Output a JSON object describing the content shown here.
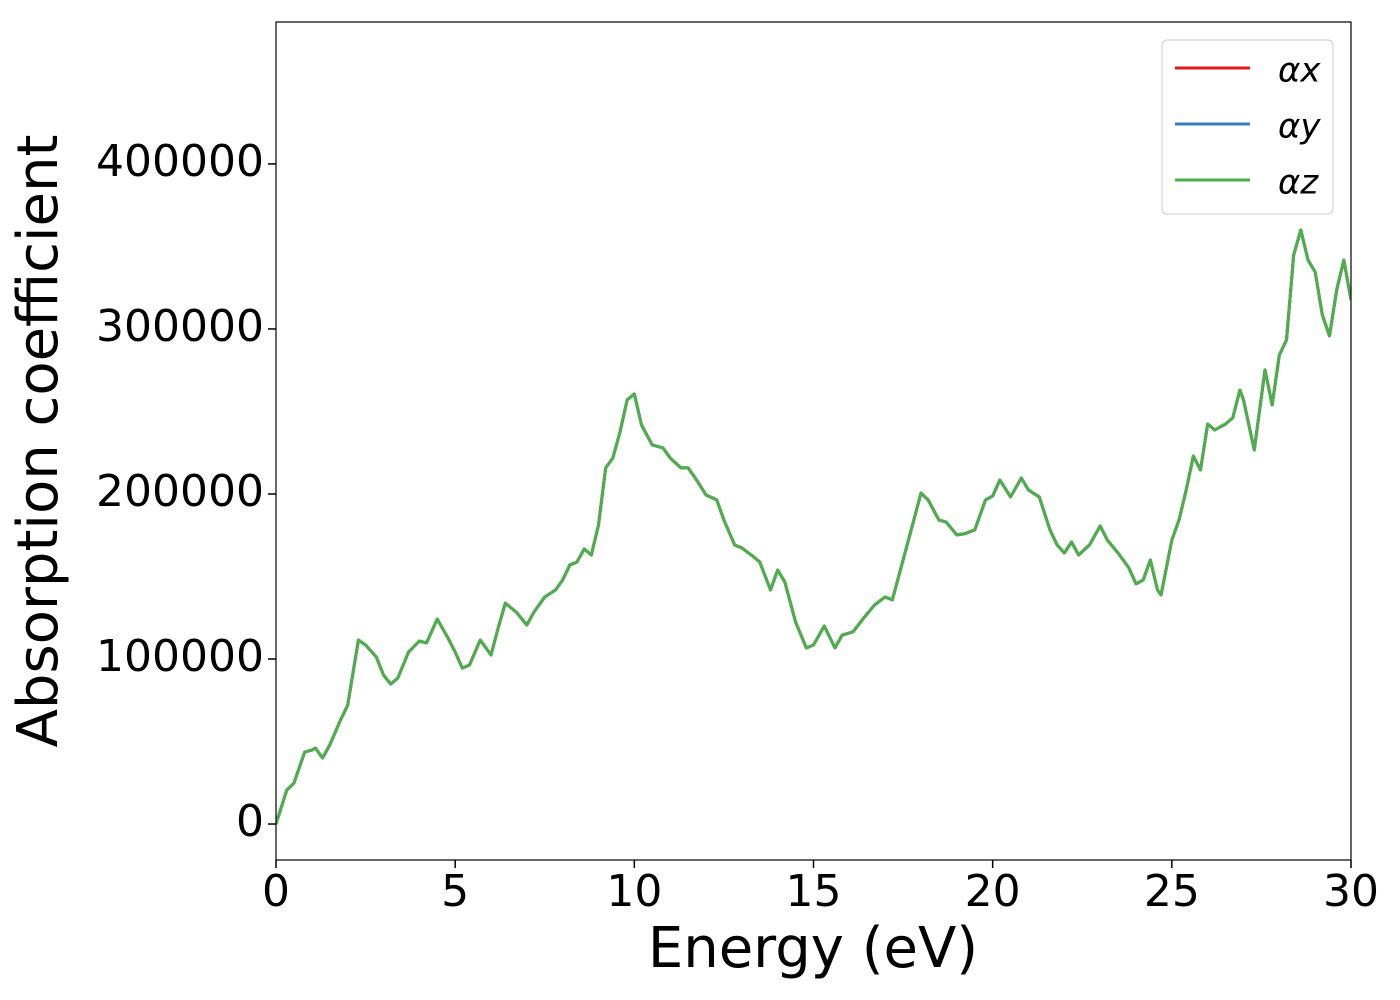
{
  "chart_data": {
    "type": "line",
    "x_label": "Energy (eV)",
    "y_label": "Absorption coefficient",
    "x": [
      0,
      0.3,
      0.5,
      0.8,
      1.0,
      1.1,
      1.3,
      1.5,
      1.8,
      2.0,
      2.3,
      2.5,
      2.8,
      3.0,
      3.2,
      3.4,
      3.7,
      4.0,
      4.2,
      4.5,
      4.8,
      5.0,
      5.2,
      5.4,
      5.7,
      6.0,
      6.2,
      6.4,
      6.7,
      7.0,
      7.2,
      7.5,
      7.8,
      8.0,
      8.2,
      8.4,
      8.6,
      8.8,
      9.0,
      9.2,
      9.4,
      9.6,
      9.8,
      10.0,
      10.2,
      10.5,
      10.8,
      11.0,
      11.3,
      11.5,
      11.7,
      12.0,
      12.3,
      12.5,
      12.8,
      13.0,
      13.3,
      13.5,
      13.8,
      14.0,
      14.2,
      14.5,
      14.8,
      15.0,
      15.3,
      15.6,
      15.8,
      16.1,
      16.4,
      16.7,
      17.0,
      17.2,
      17.5,
      17.8,
      18.0,
      18.2,
      18.5,
      18.7,
      19.0,
      19.2,
      19.5,
      19.8,
      20.0,
      20.2,
      20.5,
      20.8,
      21.0,
      21.3,
      21.6,
      21.8,
      22.0,
      22.2,
      22.4,
      22.7,
      23.0,
      23.2,
      23.5,
      23.8,
      24.0,
      24.2,
      24.4,
      24.6,
      24.7,
      25.0,
      25.2,
      25.4,
      25.6,
      25.8,
      26.0,
      26.2,
      26.5,
      26.7,
      26.9,
      27.0,
      27.3,
      27.6,
      27.8,
      28.0,
      28.2,
      28.4,
      28.6,
      28.8,
      29.0,
      29.2,
      29.4,
      29.6,
      29.8,
      30.0
    ],
    "series": [
      {
        "name": "αx",
        "color": "#e41a1c",
        "values": [
          0,
          20600,
          24800,
          43600,
          44800,
          46000,
          40000,
          47900,
          63000,
          72000,
          111500,
          108500,
          101200,
          90300,
          84800,
          88500,
          104200,
          110900,
          109700,
          124200,
          112700,
          104200,
          94500,
          96400,
          111500,
          102400,
          118800,
          133900,
          128500,
          120600,
          128500,
          137600,
          141800,
          147900,
          157000,
          158800,
          166700,
          163000,
          181200,
          215800,
          221800,
          237600,
          257000,
          260600,
          241800,
          229700,
          227900,
          221800,
          215800,
          215800,
          209700,
          199400,
          196400,
          184200,
          169100,
          167300,
          162400,
          158800,
          141800,
          153900,
          146700,
          122400,
          106700,
          108500,
          120000,
          106700,
          114500,
          116400,
          124800,
          132700,
          137600,
          135800,
          160000,
          184200,
          200600,
          196400,
          184200,
          183000,
          175200,
          175800,
          178200,
          196400,
          198800,
          208500,
          198200,
          209700,
          202400,
          198200,
          178200,
          169100,
          164200,
          170900,
          163000,
          169100,
          180600,
          172100,
          164200,
          155200,
          145500,
          147900,
          160000,
          141800,
          138800,
          172100,
          184200,
          202400,
          223000,
          214500,
          242400,
          238800,
          242400,
          246100,
          263000,
          257000,
          226700,
          275200,
          253900,
          284200,
          293300,
          344800,
          360000,
          341800,
          334500,
          308500,
          295800,
          323600,
          341800,
          317600
        ]
      },
      {
        "name": "αy",
        "color": "#377eb8",
        "values": [
          0,
          20600,
          24800,
          43600,
          44800,
          46000,
          40000,
          47900,
          63000,
          72000,
          111500,
          108500,
          101200,
          90300,
          84800,
          88500,
          104200,
          110900,
          109700,
          124200,
          112700,
          104200,
          94500,
          96400,
          111500,
          102400,
          118800,
          133900,
          128500,
          120600,
          128500,
          137600,
          141800,
          147900,
          157000,
          158800,
          166700,
          163000,
          181200,
          215800,
          221800,
          237600,
          257000,
          260600,
          241800,
          229700,
          227900,
          221800,
          215800,
          215800,
          209700,
          199400,
          196400,
          184200,
          169100,
          167300,
          162400,
          158800,
          141800,
          153900,
          146700,
          122400,
          106700,
          108500,
          120000,
          106700,
          114500,
          116400,
          124800,
          132700,
          137600,
          135800,
          160000,
          184200,
          200600,
          196400,
          184200,
          183000,
          175200,
          175800,
          178200,
          196400,
          198800,
          208500,
          198200,
          209700,
          202400,
          198200,
          178200,
          169100,
          164200,
          170900,
          163000,
          169100,
          180600,
          172100,
          164200,
          155200,
          145500,
          147900,
          160000,
          141800,
          138800,
          172100,
          184200,
          202400,
          223000,
          214500,
          242400,
          238800,
          242400,
          246100,
          263000,
          257000,
          226700,
          275200,
          253900,
          284200,
          293300,
          344800,
          360000,
          341800,
          334500,
          308500,
          295800,
          323600,
          341800,
          317600
        ]
      },
      {
        "name": "αz",
        "color": "#4daf4a",
        "values": [
          0,
          20600,
          24800,
          43600,
          44800,
          46000,
          40000,
          47900,
          63000,
          72000,
          111500,
          108500,
          101200,
          90300,
          84800,
          88500,
          104200,
          110900,
          109700,
          124200,
          112700,
          104200,
          94500,
          96400,
          111500,
          102400,
          118800,
          133900,
          128500,
          120600,
          128500,
          137600,
          141800,
          147900,
          157000,
          158800,
          166700,
          163000,
          181200,
          215800,
          221800,
          237600,
          257000,
          260600,
          241800,
          229700,
          227900,
          221800,
          215800,
          215800,
          209700,
          199400,
          196400,
          184200,
          169100,
          167300,
          162400,
          158800,
          141800,
          153900,
          146700,
          122400,
          106700,
          108500,
          120000,
          106700,
          114500,
          116400,
          124800,
          132700,
          137600,
          135800,
          160000,
          184200,
          200600,
          196400,
          184200,
          183000,
          175200,
          175800,
          178200,
          196400,
          198800,
          208500,
          198200,
          209700,
          202400,
          198200,
          178200,
          169100,
          164200,
          170900,
          163000,
          169100,
          180600,
          172100,
          164200,
          155200,
          145500,
          147900,
          160000,
          141800,
          138800,
          172100,
          184200,
          202400,
          223000,
          214500,
          242400,
          238800,
          242400,
          246100,
          263000,
          257000,
          226700,
          275200,
          253900,
          284200,
          293300,
          344800,
          360000,
          341800,
          334500,
          308500,
          295800,
          323600,
          341800,
          317600
        ]
      }
    ],
    "xlim": [
      0,
      30
    ],
    "xticks": [
      0,
      5,
      10,
      15,
      20,
      25,
      30
    ],
    "ylim": [
      -21800,
      486000
    ],
    "yticks": [
      0,
      100000,
      200000,
      300000,
      400000
    ],
    "grid": false,
    "legend": "upper right"
  }
}
